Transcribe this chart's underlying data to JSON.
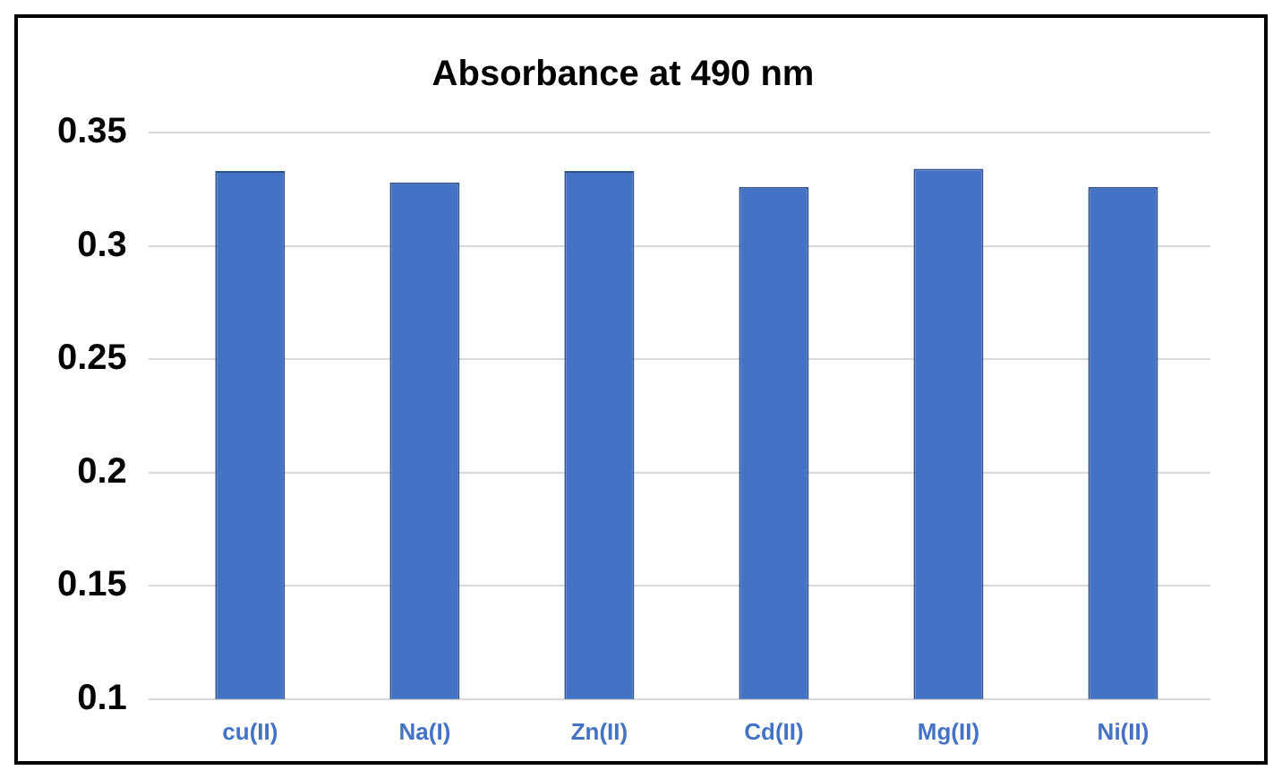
{
  "chart_data": {
    "type": "bar",
    "title": "Absorbance at 490 nm",
    "categories": [
      "cu(II)",
      "Na(I)",
      "Zn(II)",
      "Cd(II)",
      "Mg(II)",
      "Ni(II)"
    ],
    "values": [
      0.333,
      0.328,
      0.333,
      0.326,
      0.334,
      0.326
    ],
    "color": "#4472c4",
    "ylim": [
      0.1,
      0.35
    ],
    "yticks": [
      0.1,
      0.15,
      0.2,
      0.25,
      0.3,
      0.35
    ],
    "grid": "y",
    "legend": false
  }
}
